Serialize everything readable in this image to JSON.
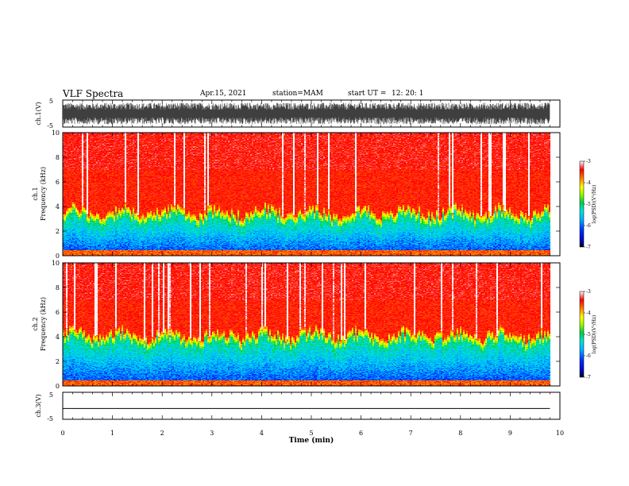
{
  "header": {
    "title": "VLF Spectra",
    "date": "Apr.15, 2021",
    "station": "station=MAM",
    "start": "start UT =",
    "start_time": "12: 20: 1"
  },
  "chart_data": [
    {
      "id": "ch1-waveform",
      "type": "line",
      "ylabel": "ch.1(V)",
      "ylim": [
        -5,
        5
      ],
      "yticks": [
        "5",
        "-5"
      ],
      "xlim": [
        0,
        10
      ],
      "data_end": 9.8,
      "envelope": [
        -4,
        4
      ]
    },
    {
      "id": "ch1-spectrogram",
      "type": "heatmap",
      "ylabel": "Frequency (kHz)",
      "ylabel_ch": "ch.1",
      "ylim": [
        0,
        10
      ],
      "yticks": [
        "0",
        "2",
        "4",
        "6",
        "8",
        "10"
      ],
      "xlim": [
        0,
        10
      ],
      "data_end": 9.8,
      "boundary_khz": 3.0,
      "colorbar": {
        "label": "log(PSD)(V²/Hz)",
        "range": [
          -7,
          -3
        ],
        "ticks": [
          "-3",
          "-4",
          "-5",
          "-6",
          "-7"
        ]
      }
    },
    {
      "id": "ch2-spectrogram",
      "type": "heatmap",
      "ylabel": "Frequency (kHz)",
      "ylabel_ch": "ch.2",
      "ylim": [
        0,
        10
      ],
      "yticks": [
        "0",
        "2",
        "4",
        "6",
        "8",
        "10"
      ],
      "xlim": [
        0,
        10
      ],
      "data_end": 9.8,
      "boundary_khz": 3.6,
      "colorbar": {
        "label": "log(PSD)(V²/Hz)",
        "range": [
          -7,
          -3
        ],
        "ticks": [
          "-3",
          "-4",
          "-5",
          "-6",
          "-7"
        ]
      }
    },
    {
      "id": "ch3-waveform",
      "type": "line",
      "ylabel": "ch.3(V)",
      "ylim": [
        -5,
        5
      ],
      "yticks": [
        "5",
        "-5"
      ],
      "xlim": [
        0,
        10
      ],
      "data_end": 9.8,
      "constant_value": -1.0,
      "xlabel": "Time (min)",
      "xticks": [
        "0",
        "1",
        "2",
        "3",
        "4",
        "5",
        "6",
        "7",
        "8",
        "9",
        "10"
      ]
    }
  ]
}
